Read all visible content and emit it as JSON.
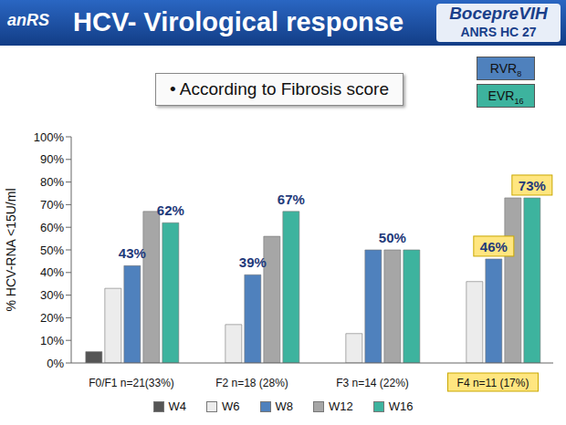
{
  "chart_data": {
    "type": "bar",
    "title": "HCV- Virological response",
    "subtitle": "• According to Fibrosis score",
    "logo": "anRS",
    "study": "BocepreVIH",
    "study_code": "ANRS HC 27",
    "key_box": [
      {
        "text": "RVR",
        "subscript": "8",
        "color": "#4f81bd"
      },
      {
        "text": "EVR",
        "subscript": "16",
        "color": "#3db39e"
      }
    ],
    "y_label": "% HCV-RNA <15U/ml",
    "categories": [
      "F0/F1 n=21(33%)",
      "F2 n=18 (28%)",
      "F3 n=14 (22%)",
      "F4 n=11 (17%)"
    ],
    "series": [
      {
        "name": "W4",
        "color": "#555555",
        "values": [
          5,
          null,
          null,
          null
        ]
      },
      {
        "name": "W6",
        "color": "#ececec",
        "values": [
          33,
          17,
          13,
          36
        ]
      },
      {
        "name": "W8",
        "color": "#4f81bd",
        "values": [
          43,
          39,
          50,
          46
        ],
        "value_labels": [
          "43%",
          "39%",
          null,
          "46%"
        ]
      },
      {
        "name": "W12",
        "color": "#a6a6a6",
        "values": [
          67,
          56,
          50,
          73
        ],
        "value_labels": [
          null,
          null,
          "50%",
          null
        ]
      },
      {
        "name": "W16",
        "color": "#3db39e",
        "values": [
          62,
          67,
          50,
          73
        ],
        "value_labels": [
          "62%",
          "67%",
          null,
          "73%"
        ]
      }
    ],
    "ylim": [
      0,
      100
    ],
    "yticks": [
      {
        "value": 0,
        "label": "0%"
      },
      {
        "value": 10,
        "label": "10%"
      },
      {
        "value": 20,
        "label": "20%"
      },
      {
        "value": 30,
        "label": "30%"
      },
      {
        "value": 40,
        "label": "40%"
      },
      {
        "value": 50,
        "label": "50%"
      },
      {
        "value": 60,
        "label": "60%"
      },
      {
        "value": 70,
        "label": "70%"
      },
      {
        "value": 80,
        "label": "80%"
      },
      {
        "value": 90,
        "label": "90%"
      },
      {
        "value": 100,
        "label": "100%"
      }
    ],
    "grid": false,
    "legend": "bottom",
    "data_labels": true
  }
}
